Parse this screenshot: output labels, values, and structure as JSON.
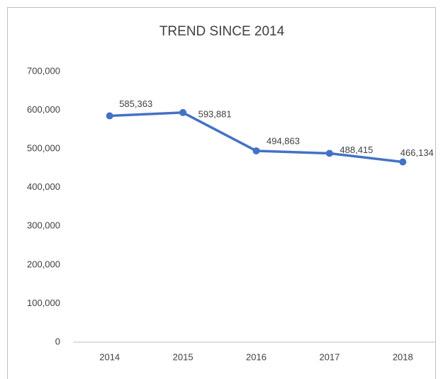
{
  "chart_data": {
    "type": "line",
    "title": "TREND SINCE 2014",
    "categories": [
      "2014",
      "2015",
      "2016",
      "2017",
      "2018"
    ],
    "series": [
      {
        "name": "Trend",
        "color": "#4472c4",
        "values": [
          585363,
          593881,
          494863,
          488415,
          466134
        ],
        "value_labels": [
          "585,363",
          "593,881",
          "494,863",
          "488,415",
          "466,134"
        ]
      }
    ],
    "ylim": [
      0,
      700000
    ],
    "yticks": [
      0,
      {
        "value": 100000,
        "label": "100,000"
      },
      {
        "value": 200000,
        "label": "200,000"
      },
      {
        "value": 300000,
        "label": "300,000"
      },
      {
        "value": 400000,
        "label": "400,000"
      },
      {
        "value": 500000,
        "label": "500,000"
      },
      {
        "value": 600000,
        "label": "600,000"
      },
      {
        "value": 700000,
        "label": "700,000"
      }
    ],
    "grid": false
  }
}
